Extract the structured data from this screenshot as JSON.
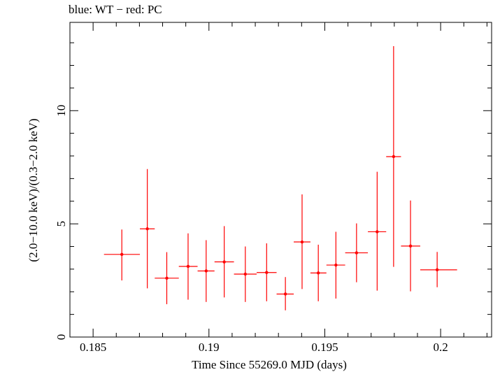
{
  "chart_data": {
    "type": "scatter",
    "title": "blue: WT − red: PC",
    "xlabel": "Time Since 55269.0 MJD (days)",
    "ylabel": "(2.0−10.0 keV)/(0.3−2.0 keV)",
    "xlim": [
      0.184,
      0.2022
    ],
    "ylim": [
      0,
      13.9
    ],
    "x_ticks": [
      0.185,
      0.19,
      0.195,
      0.2
    ],
    "x_tick_labels": [
      "0.185",
      "0.19",
      "0.195",
      "0.2"
    ],
    "y_ticks": [
      0,
      5,
      10
    ],
    "y_tick_labels": [
      "0",
      "5",
      "10"
    ],
    "grid": false,
    "series": [
      {
        "color": "#ff0000",
        "points": [
          {
            "x": 0.18624,
            "xlo": 0.18547,
            "xhi": 0.18702,
            "y": 3.65,
            "ylo": 2.5,
            "yhi": 4.75
          },
          {
            "x": 0.18734,
            "xlo": 0.18702,
            "xhi": 0.18766,
            "y": 4.78,
            "ylo": 2.15,
            "yhi": 7.42
          },
          {
            "x": 0.18818,
            "xlo": 0.18766,
            "xhi": 0.1887,
            "y": 2.6,
            "ylo": 1.45,
            "yhi": 3.75
          },
          {
            "x": 0.1891,
            "xlo": 0.1887,
            "xhi": 0.18951,
            "y": 3.12,
            "ylo": 1.65,
            "yhi": 4.58
          },
          {
            "x": 0.18988,
            "xlo": 0.18951,
            "xhi": 0.19024,
            "y": 2.92,
            "ylo": 1.55,
            "yhi": 4.28
          },
          {
            "x": 0.19066,
            "xlo": 0.19024,
            "xhi": 0.19108,
            "y": 3.32,
            "ylo": 1.75,
            "yhi": 4.9
          },
          {
            "x": 0.19157,
            "xlo": 0.19108,
            "xhi": 0.19206,
            "y": 2.78,
            "ylo": 1.55,
            "yhi": 4.0
          },
          {
            "x": 0.19249,
            "xlo": 0.19206,
            "xhi": 0.19292,
            "y": 2.85,
            "ylo": 1.58,
            "yhi": 4.14
          },
          {
            "x": 0.1933,
            "xlo": 0.19292,
            "xhi": 0.19366,
            "y": 1.9,
            "ylo": 1.18,
            "yhi": 2.65
          },
          {
            "x": 0.19402,
            "xlo": 0.19366,
            "xhi": 0.19438,
            "y": 4.2,
            "ylo": 2.12,
            "yhi": 6.3
          },
          {
            "x": 0.19472,
            "xlo": 0.19438,
            "xhi": 0.19507,
            "y": 2.83,
            "ylo": 1.58,
            "yhi": 4.08
          },
          {
            "x": 0.19548,
            "xlo": 0.19507,
            "xhi": 0.19588,
            "y": 3.18,
            "ylo": 1.7,
            "yhi": 4.65
          },
          {
            "x": 0.19637,
            "xlo": 0.19588,
            "xhi": 0.19686,
            "y": 3.72,
            "ylo": 2.42,
            "yhi": 5.02
          },
          {
            "x": 0.19726,
            "xlo": 0.19686,
            "xhi": 0.19765,
            "y": 4.65,
            "ylo": 2.05,
            "yhi": 7.3
          },
          {
            "x": 0.19797,
            "xlo": 0.19765,
            "xhi": 0.19829,
            "y": 7.97,
            "ylo": 3.1,
            "yhi": 12.85
          },
          {
            "x": 0.1987,
            "xlo": 0.19829,
            "xhi": 0.19912,
            "y": 4.02,
            "ylo": 2.02,
            "yhi": 6.03
          },
          {
            "x": 0.19985,
            "xlo": 0.19912,
            "xhi": 0.20071,
            "y": 2.97,
            "ylo": 2.2,
            "yhi": 3.76
          }
        ]
      }
    ]
  }
}
